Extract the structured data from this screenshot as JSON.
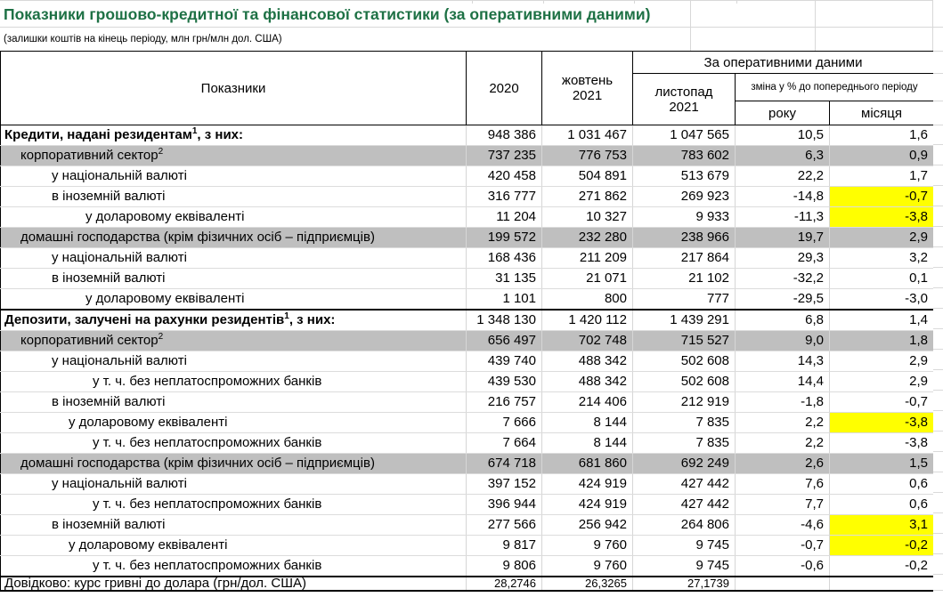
{
  "title": "Показники грошово-кредитної та фінансової статистики (за оперативними даними)",
  "subtitle": "(залишки коштів на кінець періоду, млн грн/млн дол. США)",
  "colors": {
    "title_green": "#1E7145",
    "row_gray": "#BFBFBF",
    "highlight_yellow": "#FFFF00",
    "gridline": "#D8D8D8",
    "border": "#000000"
  },
  "table": {
    "header": {
      "indicators": "Показники",
      "y2020": "2020",
      "oct": "жовтень\n2021",
      "operational": "За оперативними даними",
      "nov": "листопад\n2021",
      "change": "зміна у % до попереднього періоду",
      "year": "року",
      "month": "місяця"
    },
    "rows": [
      {
        "label": "Кредити, надані резидентам",
        "sup": "1",
        "rest": ", з них:",
        "level": "0",
        "bold": true,
        "values": [
          "948 386",
          "1 031 467",
          "1 047 565",
          "10,5",
          "1,6"
        ]
      },
      {
        "label": "корпоративний сектор",
        "sup": "2",
        "rest": "",
        "level": "1",
        "gray": true,
        "values": [
          "737 235",
          "776 753",
          "783 602",
          "6,3",
          "0,9"
        ]
      },
      {
        "label": "у національній валюті",
        "level": "2",
        "values": [
          "420 458",
          "504 891",
          "513 679",
          "22,2",
          "1,7"
        ]
      },
      {
        "label": "в іноземній валюті",
        "level": "2",
        "values": [
          "316 777",
          "271 862",
          "269 923",
          "-14,8",
          "-0,7"
        ],
        "hl_month": true
      },
      {
        "label": "у доларовому еквіваленті",
        "level": "3x",
        "values": [
          "11 204",
          "10 327",
          "9 933",
          "-11,3",
          "-3,8"
        ],
        "hl_month": true
      },
      {
        "label": "домашні господарства (крім фізичних осіб – підприємців)",
        "level": "1",
        "gray": true,
        "values": [
          "199 572",
          "232 280",
          "238 966",
          "19,7",
          "2,9"
        ]
      },
      {
        "label": "у національній валюті",
        "level": "2",
        "values": [
          "168 436",
          "211 209",
          "217 864",
          "29,3",
          "3,2"
        ]
      },
      {
        "label": "в іноземній валюті",
        "level": "2",
        "values": [
          "31 135",
          "21 071",
          "21 102",
          "-32,2",
          "0,1"
        ]
      },
      {
        "label": "у доларовому еквіваленті",
        "level": "3x",
        "values": [
          "1 101",
          "800",
          "777",
          "-29,5",
          "-3,0"
        ]
      },
      {
        "label": "Депозити, залучені на рахунки резидентів",
        "sup": "1",
        "rest": ", з них:",
        "level": "0",
        "bold": true,
        "section_start": true,
        "values": [
          "1 348 130",
          "1 420 112",
          "1 439 291",
          "6,8",
          "1,4"
        ]
      },
      {
        "label": "корпоративний сектор",
        "sup": "2",
        "rest": "",
        "level": "1",
        "gray": true,
        "values": [
          "656 497",
          "702 748",
          "715 527",
          "9,0",
          "1,8"
        ]
      },
      {
        "label": "у національній валюті",
        "level": "2",
        "values": [
          "439 740",
          "488 342",
          "502 608",
          "14,3",
          "2,9"
        ]
      },
      {
        "label": "у т. ч. без неплатоспроможних банків",
        "level": "4",
        "values": [
          "439 530",
          "488 342",
          "502 608",
          "14,4",
          "2,9"
        ]
      },
      {
        "label": "в іноземній валюті",
        "level": "2",
        "values": [
          "216 757",
          "214 406",
          "212 919",
          "-1,8",
          "-0,7"
        ]
      },
      {
        "label": "у доларовому еквіваленті",
        "level": "3",
        "values": [
          "7 666",
          "8 144",
          "7 835",
          "2,2",
          "-3,8"
        ],
        "hl_month": true
      },
      {
        "label": "у т. ч. без неплатоспроможних банків",
        "level": "4",
        "values": [
          "7 664",
          "8 144",
          "7 835",
          "2,2",
          "-3,8"
        ]
      },
      {
        "label": "домашні господарства (крім фізичних осіб – підприємців)",
        "level": "1",
        "gray": true,
        "values": [
          "674 718",
          "681 860",
          "692 249",
          "2,6",
          "1,5"
        ]
      },
      {
        "label": "у національній валюті",
        "level": "2",
        "values": [
          "397 152",
          "424 919",
          "427 442",
          "7,6",
          "0,6"
        ]
      },
      {
        "label": "у т. ч. без неплатоспроможних банків",
        "level": "4",
        "values": [
          "396 944",
          "424 919",
          "427 442",
          "7,7",
          "0,6"
        ]
      },
      {
        "label": "в іноземній валюті",
        "level": "2",
        "values": [
          "277 566",
          "256 942",
          "264 806",
          "-4,6",
          "3,1"
        ],
        "hl_month": true
      },
      {
        "label": "у доларовому еквіваленті",
        "level": "3",
        "values": [
          "9 817",
          "9 760",
          "9 745",
          "-0,7",
          "-0,2"
        ],
        "hl_month": true
      },
      {
        "label": "у т. ч. без неплатоспроможних банків",
        "level": "4",
        "values": [
          "9 806",
          "9 760",
          "9 745",
          "-0,6",
          "-0,2"
        ]
      },
      {
        "label": "Довідково: курс гривні до долара (грн/дол. США)",
        "level": "0",
        "footer": true,
        "section_start": true,
        "values": [
          "28,2746",
          "26,3265",
          "27,1739",
          "",
          ""
        ]
      }
    ]
  }
}
